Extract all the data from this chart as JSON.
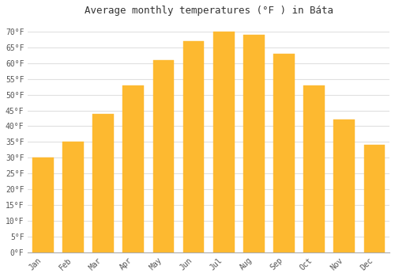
{
  "title": "Average monthly temperatures (°F ) in Báta",
  "months": [
    "Jan",
    "Feb",
    "Mar",
    "Apr",
    "May",
    "Jun",
    "Jul",
    "Aug",
    "Sep",
    "Oct",
    "Nov",
    "Dec"
  ],
  "values": [
    30,
    35,
    44,
    53,
    61,
    67,
    70,
    69,
    63,
    53,
    42,
    34
  ],
  "bar_color": "#FDB930",
  "bar_edge_color": "#FDB930",
  "background_color": "#FFFFFF",
  "grid_color": "#E0E0E0",
  "title_color": "#333333",
  "tick_label_color": "#555555",
  "ylim": [
    0,
    73
  ],
  "yticks": [
    0,
    5,
    10,
    15,
    20,
    25,
    30,
    35,
    40,
    45,
    50,
    55,
    60,
    65,
    70
  ],
  "title_fontsize": 9,
  "tick_fontsize": 7,
  "font_family": "monospace"
}
